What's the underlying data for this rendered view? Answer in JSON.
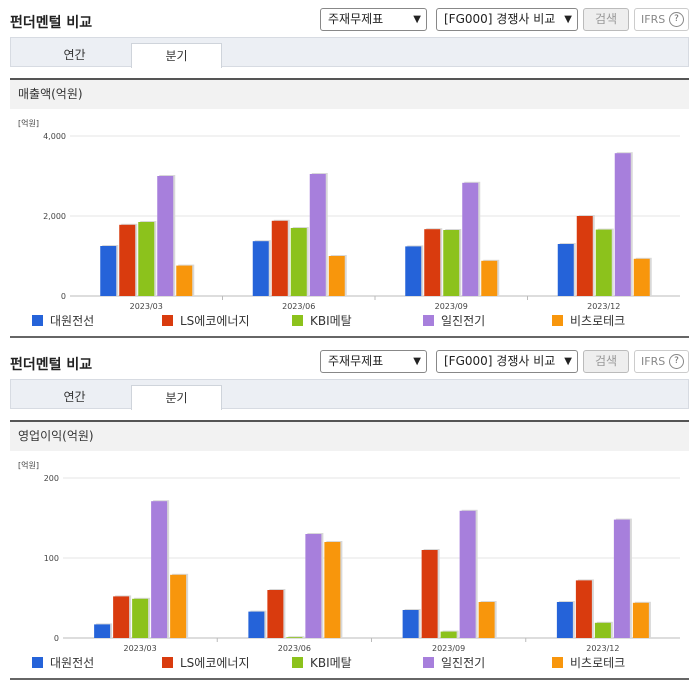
{
  "colors": {
    "s1": "#2563d9",
    "s2": "#d93b0e",
    "s3": "#8cc21c",
    "s4": "#a77fdc",
    "s5": "#f8960c"
  },
  "panels": [
    {
      "title": "펀더멘털 비교",
      "select1": "주재무제표",
      "select2": "[FG000] 경쟁사 비교",
      "search_label": "검색",
      "ifrs_label": "IFRS",
      "ifrs_help": "?",
      "tabs": [
        {
          "label": "연간"
        },
        {
          "label": "분기"
        }
      ],
      "active_tab": "분기",
      "section_title": "매출액(억원)"
    },
    {
      "title": "펀더멘털 비교",
      "select1": "주재무제표",
      "select2": "[FG000] 경쟁사 비교",
      "search_label": "검색",
      "ifrs_label": "IFRS",
      "ifrs_help": "?",
      "tabs": [
        {
          "label": "연간"
        },
        {
          "label": "분기"
        }
      ],
      "active_tab": "분기",
      "section_title": "영업이익(억원)"
    }
  ],
  "chart_data": [
    {
      "type": "bar",
      "title": "매출액(억원)",
      "unit_label": "[억원]",
      "categories": [
        "2023/03",
        "2023/06",
        "2023/09",
        "2023/12"
      ],
      "ylim": [
        0,
        4000
      ],
      "yticks": [
        "0",
        "2,000",
        "4,000"
      ],
      "ytick_values": [
        0,
        2000,
        4000
      ],
      "grid": true,
      "legend_position": "bottom",
      "series": [
        {
          "name": "대원전선",
          "values": [
            1250,
            1370,
            1240,
            1300
          ]
        },
        {
          "name": "LS에코에너지",
          "values": [
            1780,
            1880,
            1670,
            2000
          ]
        },
        {
          "name": "KBI메탈",
          "values": [
            1850,
            1700,
            1650,
            1660
          ]
        },
        {
          "name": "일진전기",
          "values": [
            3000,
            3050,
            2830,
            3570
          ]
        },
        {
          "name": "비츠로테크",
          "values": [
            760,
            1000,
            880,
            930
          ]
        }
      ]
    },
    {
      "type": "bar",
      "title": "영업이익(억원)",
      "unit_label": "[억원]",
      "categories": [
        "2023/03",
        "2023/06",
        "2023/09",
        "2023/12"
      ],
      "ylim": [
        0,
        200
      ],
      "yticks": [
        "0",
        "100",
        "200"
      ],
      "ytick_values": [
        0,
        100,
        200
      ],
      "grid": true,
      "legend_position": "bottom",
      "series": [
        {
          "name": "대원전선",
          "values": [
            17,
            33,
            35,
            45
          ]
        },
        {
          "name": "LS에코에너지",
          "values": [
            52,
            60,
            110,
            72
          ]
        },
        {
          "name": "KBI메탈",
          "values": [
            49,
            1,
            8,
            19
          ]
        },
        {
          "name": "일진전기",
          "values": [
            171,
            130,
            159,
            148
          ]
        },
        {
          "name": "비츠로테크",
          "values": [
            79,
            120,
            45,
            44
          ]
        }
      ]
    }
  ]
}
